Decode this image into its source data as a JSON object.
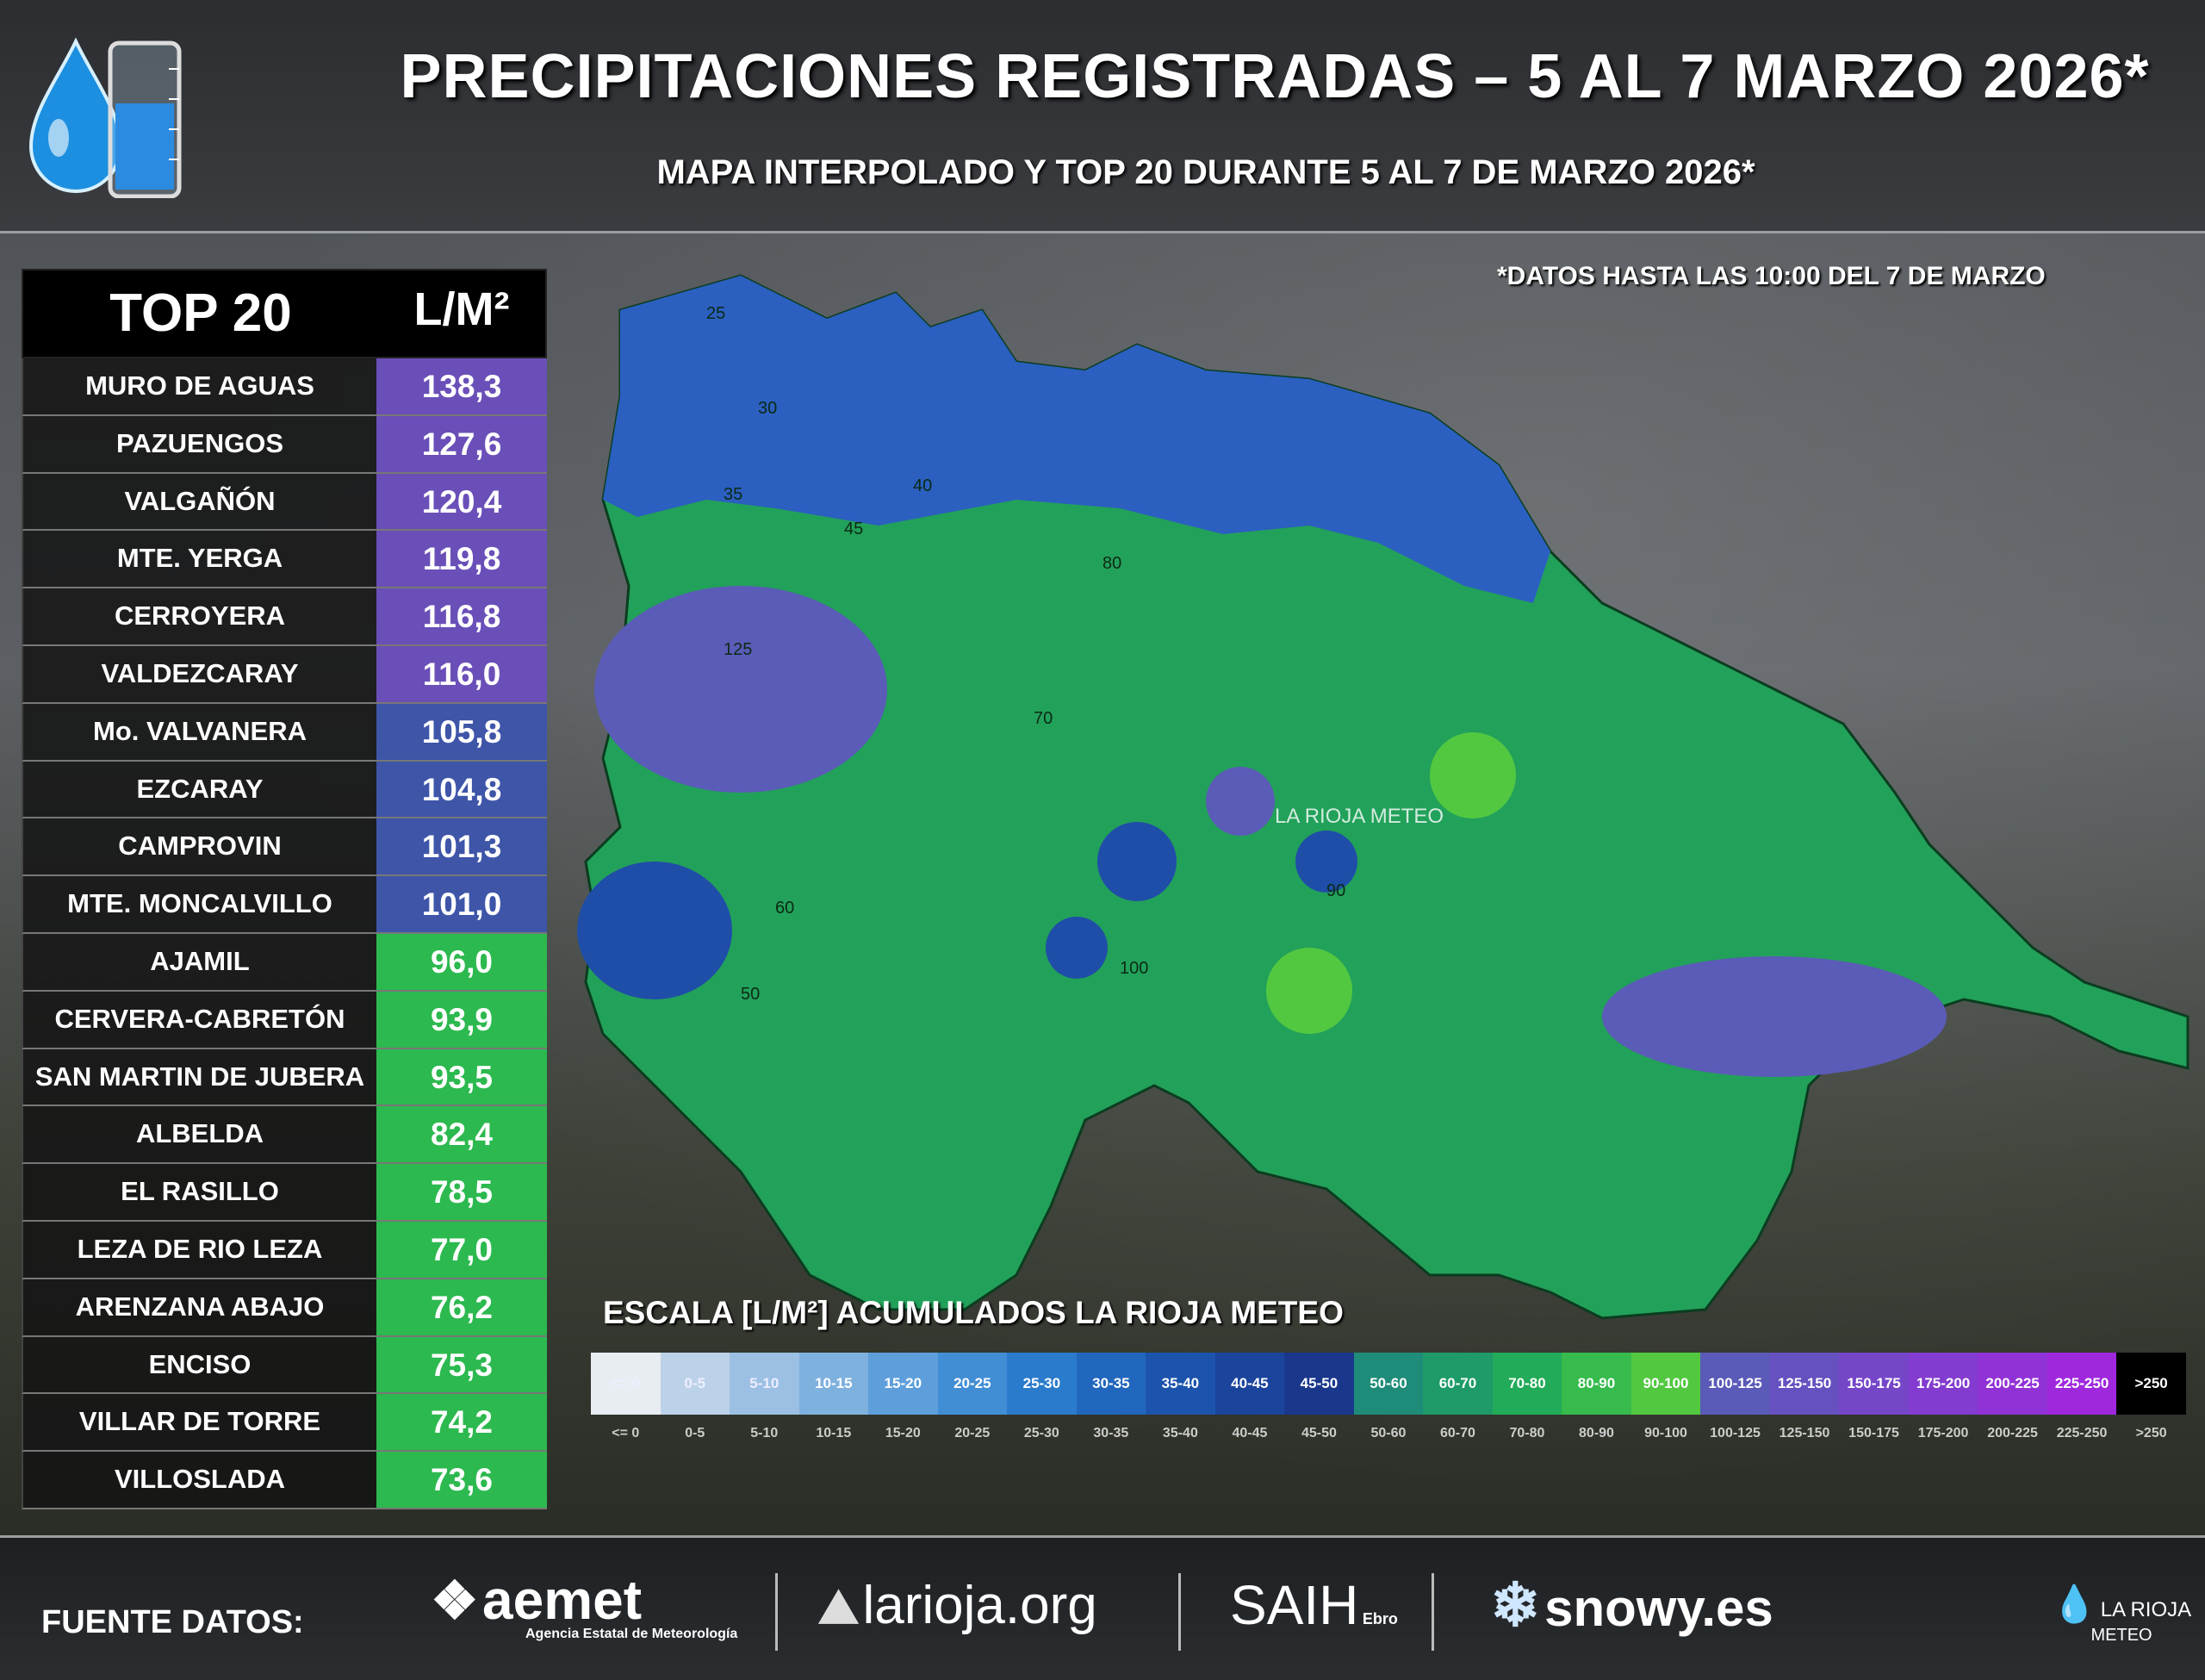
{
  "header": {
    "title": "PRECIPITACIONES REGISTRADAS – 5 AL 7 MARZO 2026*",
    "subtitle": "MAPA INTERPOLADO Y TOP 20 DURANTE 5 AL 7 DE MARZO 2026*"
  },
  "map": {
    "note": "*DATOS HASTA LAS 10:00 DEL 7 DE MARZO",
    "watermark": "LA RIOJA METEO",
    "contour_labels": [
      "25",
      "30",
      "35",
      "40",
      "45",
      "50",
      "60",
      "70",
      "80",
      "90",
      "100",
      "125"
    ]
  },
  "table": {
    "head_rank": "TOP 20",
    "head_unit": "L/M²",
    "rows": [
      {
        "name": "MURO DE AGUAS",
        "value": "138,3"
      },
      {
        "name": "PAZUENGOS",
        "value": "127,6"
      },
      {
        "name": "VALGAÑÓN",
        "value": "120,4"
      },
      {
        "name": "MTE. YERGA",
        "value": "119,8"
      },
      {
        "name": "CERROYERA",
        "value": "116,8"
      },
      {
        "name": "VALDEZCARAY",
        "value": "116,0"
      },
      {
        "name": "Mo. VALVANERA",
        "value": "105,8"
      },
      {
        "name": "EZCARAY",
        "value": "104,8"
      },
      {
        "name": "CAMPROVIN",
        "value": "101,3"
      },
      {
        "name": "MTE. MONCALVILLO",
        "value": "101,0"
      },
      {
        "name": "AJAMIL",
        "value": "96,0"
      },
      {
        "name": "CERVERA-CABRETÓN",
        "value": "93,9"
      },
      {
        "name": "SAN MARTIN DE JUBERA",
        "value": "93,5"
      },
      {
        "name": "ALBELDA",
        "value": "82,4"
      },
      {
        "name": "EL RASILLO",
        "value": "78,5"
      },
      {
        "name": "LEZA DE RIO LEZA",
        "value": "77,0"
      },
      {
        "name": "ARENZANA ABAJO",
        "value": "76,2"
      },
      {
        "name": "ENCISO",
        "value": "75,3"
      },
      {
        "name": "VILLAR DE TORRE",
        "value": "74,2"
      },
      {
        "name": "VILLOSLADA",
        "value": "73,6"
      }
    ],
    "colors": {
      "purple_high": "#6a4fb8",
      "blue_mid": "#3e55a8",
      "green": "#2cb94f"
    }
  },
  "scale": {
    "title": "ESCALA [L/M²] ACUMULADOS LA RIOJA METEO",
    "bins": [
      {
        "label": "<= 0",
        "color": "#e8edf2"
      },
      {
        "label": "0-5",
        "color": "#bcd2e8"
      },
      {
        "label": "5-10",
        "color": "#9cc0e3"
      },
      {
        "label": "10-15",
        "color": "#7fb1df"
      },
      {
        "label": "15-20",
        "color": "#5e9fdb"
      },
      {
        "label": "20-25",
        "color": "#428ed5"
      },
      {
        "label": "25-30",
        "color": "#2b7bcc"
      },
      {
        "label": "30-35",
        "color": "#2167bd"
      },
      {
        "label": "35-40",
        "color": "#1c54ad"
      },
      {
        "label": "40-45",
        "color": "#1b449d"
      },
      {
        "label": "45-50",
        "color": "#1a378c"
      },
      {
        "label": "50-60",
        "color": "#1f8c7a"
      },
      {
        "label": "60-70",
        "color": "#1e9b68"
      },
      {
        "label": "70-80",
        "color": "#22ab58"
      },
      {
        "label": "80-90",
        "color": "#36bb4c"
      },
      {
        "label": "90-100",
        "color": "#52c841"
      },
      {
        "label": "100-125",
        "color": "#5a5ab8"
      },
      {
        "label": "125-150",
        "color": "#6750c0"
      },
      {
        "label": "150-175",
        "color": "#7546c8"
      },
      {
        "label": "175-200",
        "color": "#833ccf"
      },
      {
        "label": "200-225",
        "color": "#9132d6"
      },
      {
        "label": "225-250",
        "color": "#9f28dd"
      },
      {
        "label": ">250",
        "color": "#000000"
      }
    ]
  },
  "footer": {
    "source_label": "FUENTE DATOS:",
    "partners": {
      "aemet": "aemet",
      "aemet_sub": "Agencia Estatal de Meteorología",
      "larioja": "larioja.org",
      "saih": "SAIH",
      "saih_sub": "Ebro",
      "snowy": "snowy.es",
      "brand": "LA RIOJA",
      "brand_sub": "METEO"
    }
  }
}
